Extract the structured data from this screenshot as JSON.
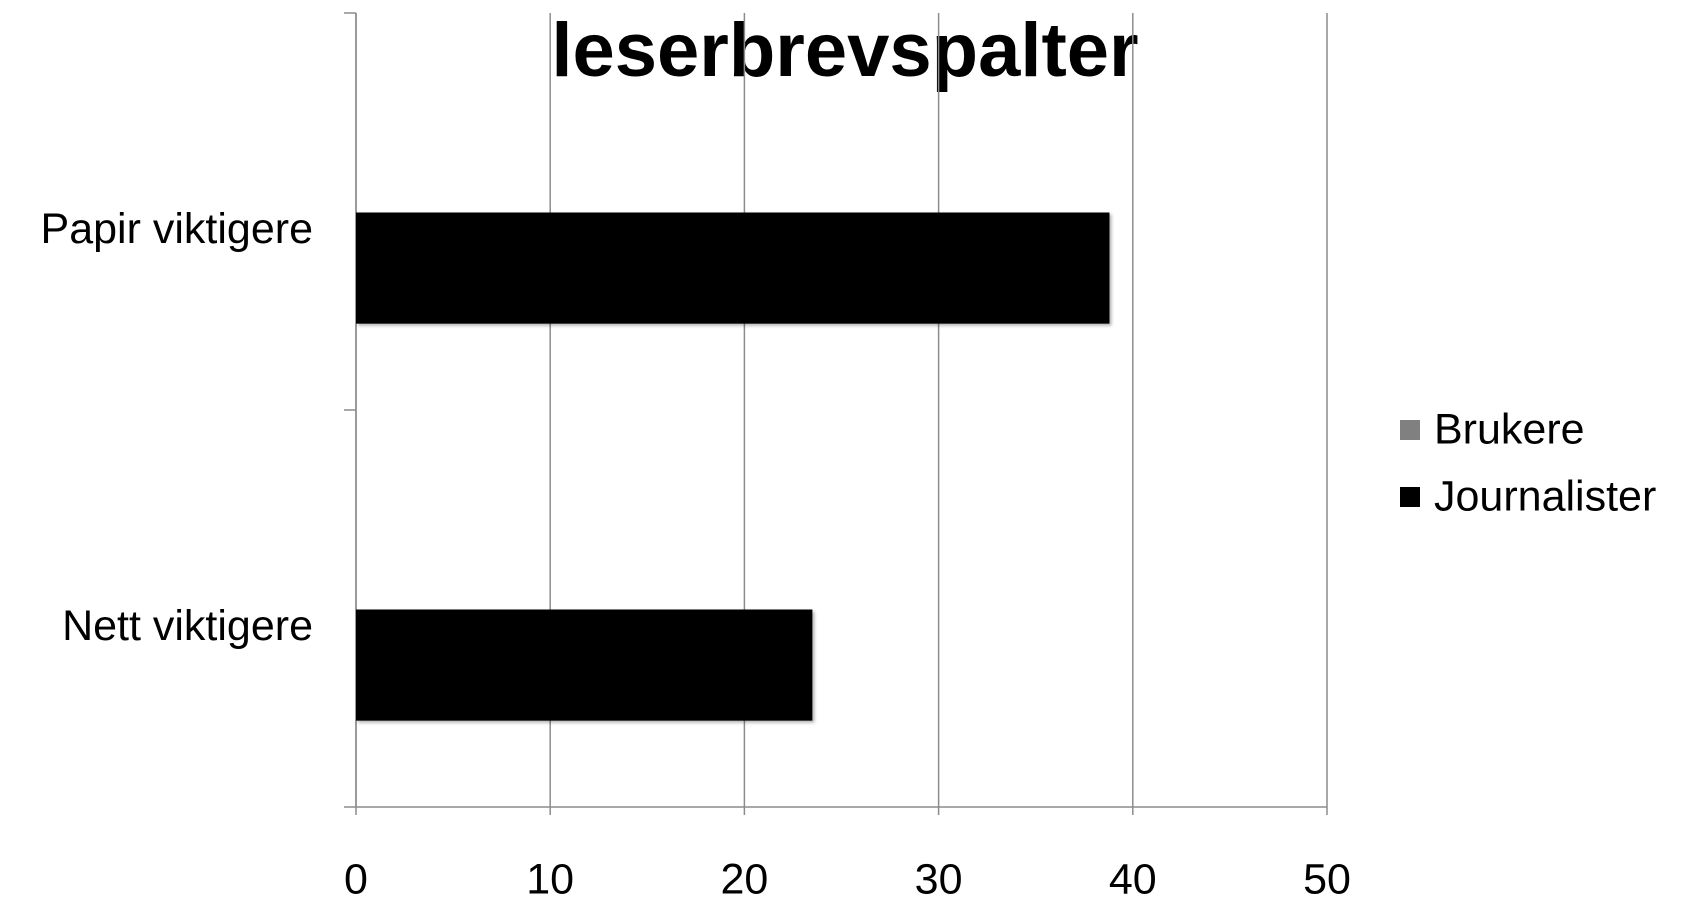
{
  "chart_data": {
    "type": "barh",
    "title": "leserbrevspalter",
    "categories": [
      "Papir viktigere",
      "Nett viktigere"
    ],
    "series": [
      {
        "name": "Brukere",
        "color": "#808080",
        "values": [
          null,
          null
        ]
      },
      {
        "name": "Journalister",
        "color": "#000000",
        "values": [
          38.8,
          23.5
        ]
      }
    ],
    "xlim": [
      0,
      50
    ],
    "xticks": [
      0,
      10,
      20,
      30,
      40,
      50
    ],
    "grid": true,
    "legend": "right"
  }
}
